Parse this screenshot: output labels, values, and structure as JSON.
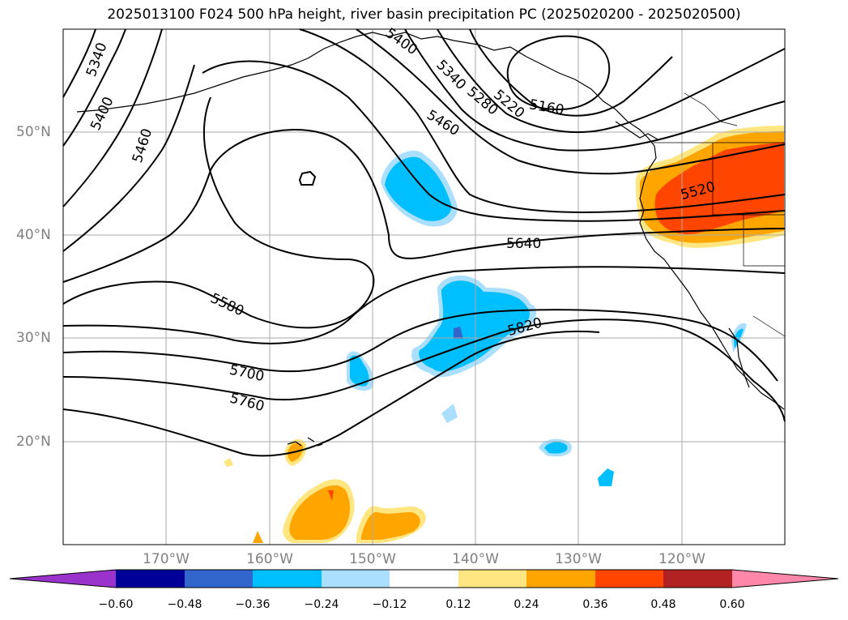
{
  "title": "2025013100 F024 500 hPa height, river basin precipitation PC (2025020200 - 2025020500)",
  "lat_labels": [
    "50°N",
    "40°N",
    "30°N",
    "20°N"
  ],
  "lon_labels": [
    "170°W",
    "160°W",
    "150°W",
    "140°W",
    "130°W",
    "120°W"
  ],
  "contour_labels": [
    "5340",
    "5400",
    "5460",
    "5400",
    "5340",
    "5280",
    "5220",
    "5160",
    "5460",
    "5520",
    "5640",
    "5580",
    "5820",
    "5700",
    "5760"
  ],
  "colorbar": {
    "ticks": [
      "−0.60",
      "−0.48",
      "−0.36",
      "−0.24",
      "−0.12",
      "0.12",
      "0.24",
      "0.36",
      "0.48",
      "0.60"
    ],
    "colors": [
      "#9933cc",
      "#000099",
      "#3366cc",
      "#00bfff",
      "#aadfff",
      "#ffffff",
      "#ffe680",
      "#ffa500",
      "#ff4500",
      "#b22222",
      "#ff88aa"
    ]
  },
  "map": {
    "projection": "PlateCarree",
    "lon_range": [
      -180,
      -110
    ],
    "lat_range": [
      10,
      60
    ],
    "contour_color": "#000000",
    "gridline_color": "#aaaaaa"
  }
}
